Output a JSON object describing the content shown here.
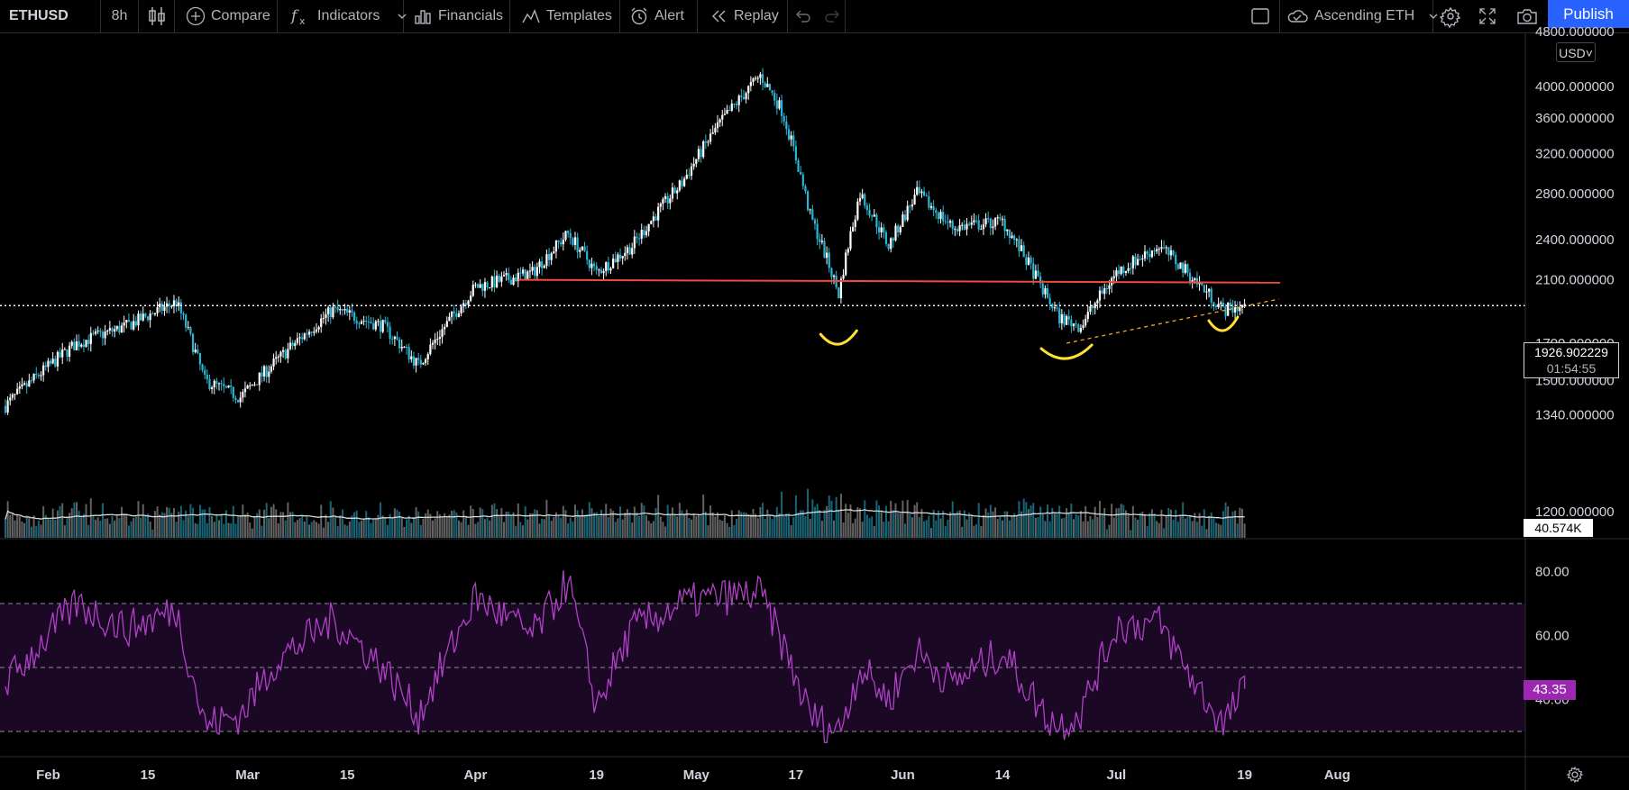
{
  "toolbar": {
    "symbol": "ETHUSD",
    "interval": "8h",
    "compare": "Compare",
    "indicators": "Indicators",
    "financials": "Financials",
    "templates": "Templates",
    "alert": "Alert",
    "replay": "Replay",
    "layout_name": "Ascending ETH",
    "publish": "Publish"
  },
  "colors": {
    "candle_up": "#ffffff",
    "candle_down": "#29b6d6",
    "resistance": "#f04a3a",
    "support": "#f5a623",
    "annotation": "#ffe033",
    "rsi": "#b041c7",
    "rsi_band": "#1b0825"
  },
  "price_axis": {
    "currency": "USD",
    "labels": [
      "4800.000000",
      "4000.000000",
      "3600.000000",
      "3200.000000",
      "2800.000000",
      "2400.000000",
      "2100.000000",
      "1700.000000",
      "1500.000000",
      "1340.000000",
      "1200.000000"
    ],
    "current_price": "1926.902229",
    "countdown": "01:54:55",
    "volume_label": "40.574K"
  },
  "rsi_axis": {
    "labels": [
      "80.00",
      "60.00",
      "40.00"
    ],
    "current": "43.35"
  },
  "time_axis": {
    "labels": [
      "Feb",
      "15",
      "Mar",
      "15",
      "Apr",
      "19",
      "May",
      "17",
      "Jun",
      "14",
      "Jul",
      "19",
      "Aug"
    ]
  },
  "chart_data": {
    "type": "candlestick",
    "symbol": "ETHUSD",
    "interval": "8h",
    "scale": "log",
    "ylim": [
      1150,
      4900
    ],
    "keypoints": [
      {
        "date": "2021-01-26",
        "close": 1380
      },
      {
        "date": "2021-02-05",
        "close": 1700
      },
      {
        "date": "2021-02-12",
        "close": 1800
      },
      {
        "date": "2021-02-19",
        "close": 1950
      },
      {
        "date": "2021-02-23",
        "close": 1500
      },
      {
        "date": "2021-02-28",
        "close": 1420
      },
      {
        "date": "2021-03-05",
        "close": 1600
      },
      {
        "date": "2021-03-13",
        "close": 1900
      },
      {
        "date": "2021-03-20",
        "close": 1800
      },
      {
        "date": "2021-03-25",
        "close": 1580
      },
      {
        "date": "2021-04-02",
        "close": 2050
      },
      {
        "date": "2021-04-10",
        "close": 2150
      },
      {
        "date": "2021-04-15",
        "close": 2450
      },
      {
        "date": "2021-04-19",
        "close": 2150
      },
      {
        "date": "2021-04-24",
        "close": 2350
      },
      {
        "date": "2021-05-01",
        "close": 2900
      },
      {
        "date": "2021-05-06",
        "close": 3500
      },
      {
        "date": "2021-05-12",
        "close": 4150
      },
      {
        "date": "2021-05-15",
        "close": 3700
      },
      {
        "date": "2021-05-19",
        "close": 2600
      },
      {
        "date": "2021-05-23",
        "close": 2000
      },
      {
        "date": "2021-05-26",
        "close": 2800
      },
      {
        "date": "2021-05-30",
        "close": 2350
      },
      {
        "date": "2021-06-03",
        "close": 2800
      },
      {
        "date": "2021-06-08",
        "close": 2500
      },
      {
        "date": "2021-06-15",
        "close": 2550
      },
      {
        "date": "2021-06-21",
        "close": 2000
      },
      {
        "date": "2021-06-23",
        "close": 1850
      },
      {
        "date": "2021-06-26",
        "close": 1800
      },
      {
        "date": "2021-07-01",
        "close": 2150
      },
      {
        "date": "2021-07-07",
        "close": 2350
      },
      {
        "date": "2021-07-12",
        "close": 2100
      },
      {
        "date": "2021-07-16",
        "close": 1900
      },
      {
        "date": "2021-07-19",
        "close": 1926.9
      }
    ],
    "volume": {
      "last": "40.574K"
    },
    "rsi": {
      "levels": [
        70,
        50,
        30
      ],
      "current": 43.35,
      "keypoints": [
        {
          "date": "2021-01-26",
          "value": 45
        },
        {
          "date": "2021-02-05",
          "value": 70
        },
        {
          "date": "2021-02-12",
          "value": 62
        },
        {
          "date": "2021-02-19",
          "value": 68
        },
        {
          "date": "2021-02-23",
          "value": 32
        },
        {
          "date": "2021-02-28",
          "value": 35
        },
        {
          "date": "2021-03-05",
          "value": 52
        },
        {
          "date": "2021-03-13",
          "value": 65
        },
        {
          "date": "2021-03-20",
          "value": 50
        },
        {
          "date": "2021-03-25",
          "value": 35
        },
        {
          "date": "2021-04-02",
          "value": 72
        },
        {
          "date": "2021-04-10",
          "value": 60
        },
        {
          "date": "2021-04-15",
          "value": 77
        },
        {
          "date": "2021-04-19",
          "value": 38
        },
        {
          "date": "2021-04-24",
          "value": 62
        },
        {
          "date": "2021-05-01",
          "value": 70
        },
        {
          "date": "2021-05-06",
          "value": 72
        },
        {
          "date": "2021-05-12",
          "value": 73
        },
        {
          "date": "2021-05-15",
          "value": 58
        },
        {
          "date": "2021-05-19",
          "value": 35
        },
        {
          "date": "2021-05-23",
          "value": 30
        },
        {
          "date": "2021-05-26",
          "value": 50
        },
        {
          "date": "2021-05-30",
          "value": 40
        },
        {
          "date": "2021-06-03",
          "value": 55
        },
        {
          "date": "2021-06-08",
          "value": 45
        },
        {
          "date": "2021-06-15",
          "value": 55
        },
        {
          "date": "2021-06-21",
          "value": 35
        },
        {
          "date": "2021-06-23",
          "value": 32
        },
        {
          "date": "2021-06-26",
          "value": 36
        },
        {
          "date": "2021-07-01",
          "value": 63
        },
        {
          "date": "2021-07-07",
          "value": 64
        },
        {
          "date": "2021-07-12",
          "value": 45
        },
        {
          "date": "2021-07-16",
          "value": 32
        },
        {
          "date": "2021-07-19",
          "value": 43.35
        }
      ]
    },
    "drawings": {
      "resistance_line": {
        "from": {
          "date": "2021-04-08",
          "price": 2100
        },
        "to": {
          "date": "2021-07-24",
          "price": 2080
        }
      },
      "support_line": {
        "from": {
          "date": "2021-06-24",
          "price": 1700
        },
        "to": {
          "date": "2021-07-20",
          "price": 1940
        }
      },
      "annotations": [
        {
          "date": "2021-05-23",
          "price": 1720
        },
        {
          "date": "2021-06-24",
          "price": 1640
        },
        {
          "date": "2021-07-16",
          "price": 1800
        }
      ]
    }
  }
}
